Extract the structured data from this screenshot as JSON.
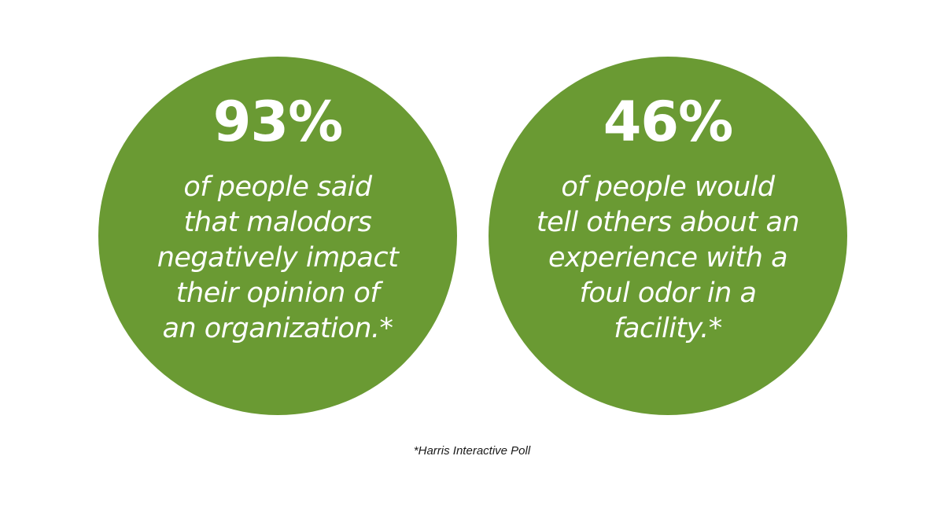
{
  "colors": {
    "circle": "#6a9a33",
    "text_on_circle": "#ffffff",
    "background": "#ffffff",
    "footnote": "#1a1a1a"
  },
  "stats": [
    {
      "percent": "93%",
      "lines": [
        "of people said",
        "that malodors",
        "negatively impact",
        "their opinion of",
        "an organization.*"
      ]
    },
    {
      "percent": "46%",
      "lines": [
        "of people would",
        "tell others about an",
        "experience with a",
        "foul odor in a",
        "facility.*"
      ]
    }
  ],
  "footnote": "*Harris Interactive Poll"
}
